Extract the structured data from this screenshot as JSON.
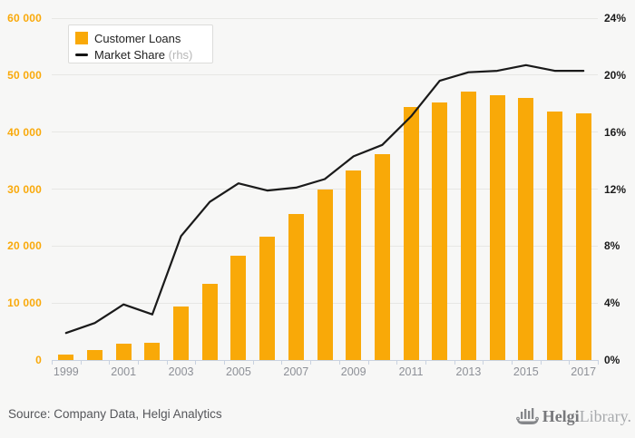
{
  "legend": {
    "items": [
      {
        "label": "Customer Loans"
      },
      {
        "label": "Market Share",
        "suffix": "(rhs)"
      }
    ]
  },
  "footer": {
    "source": "Source: Company Data, Helgi Analytics",
    "logo": {
      "bold": "Helgi",
      "light": "Library.",
      "icon": "viking-ship-bar-chart"
    }
  },
  "colors": {
    "bar": "#F9A908",
    "line": "#1A1A1A",
    "left_axis_label": "#F9A90A",
    "right_axis_label": "#1B1B1B",
    "x_label": "#8D9097",
    "gridline": "#E7E7E4",
    "axis_line": "#C9D2E0",
    "background": "#F7F7F6",
    "legend_suffix": "#B7B7B7"
  },
  "chart_data": {
    "type": "bar",
    "title": "",
    "categories": [
      "1999",
      "2000",
      "2001",
      "2002",
      "2003",
      "2004",
      "2005",
      "2006",
      "2007",
      "2008",
      "2009",
      "2010",
      "2011",
      "2012",
      "2013",
      "2014",
      "2015",
      "2016",
      "2017"
    ],
    "series": [
      {
        "name": "Customer Loans",
        "type": "bar",
        "axis": "left",
        "values": [
          1000,
          1700,
          2900,
          3000,
          9400,
          13400,
          18300,
          21600,
          25600,
          29900,
          33300,
          36200,
          44400,
          45200,
          47100,
          46400,
          46000,
          43600,
          43300
        ]
      },
      {
        "name": "Market Share (rhs)",
        "type": "line",
        "axis": "right",
        "values": [
          1.9,
          2.6,
          3.9,
          3.2,
          8.7,
          11.1,
          12.4,
          11.9,
          12.1,
          12.7,
          14.3,
          15.1,
          17.1,
          19.6,
          20.2,
          20.3,
          20.7,
          20.3,
          20.3
        ]
      }
    ],
    "left_axis": {
      "range": [
        0,
        60000
      ],
      "values": [
        0,
        10000,
        20000,
        30000,
        40000,
        50000,
        60000
      ],
      "tick_labels": [
        "0",
        "10 000",
        "20 000",
        "30 000",
        "40 000",
        "50 000",
        "60 000"
      ]
    },
    "right_axis": {
      "range": [
        0,
        24
      ],
      "values": [
        0,
        4,
        8,
        12,
        16,
        20,
        24
      ],
      "tick_labels": [
        "0%",
        "4%",
        "8%",
        "12%",
        "16%",
        "20%",
        "24%"
      ]
    },
    "x_tick_labels": [
      "1999",
      "2001",
      "2003",
      "2005",
      "2007",
      "2009",
      "2011",
      "2013",
      "2015",
      "2017"
    ],
    "grid": "horizontal",
    "legend_position": "top-left"
  }
}
